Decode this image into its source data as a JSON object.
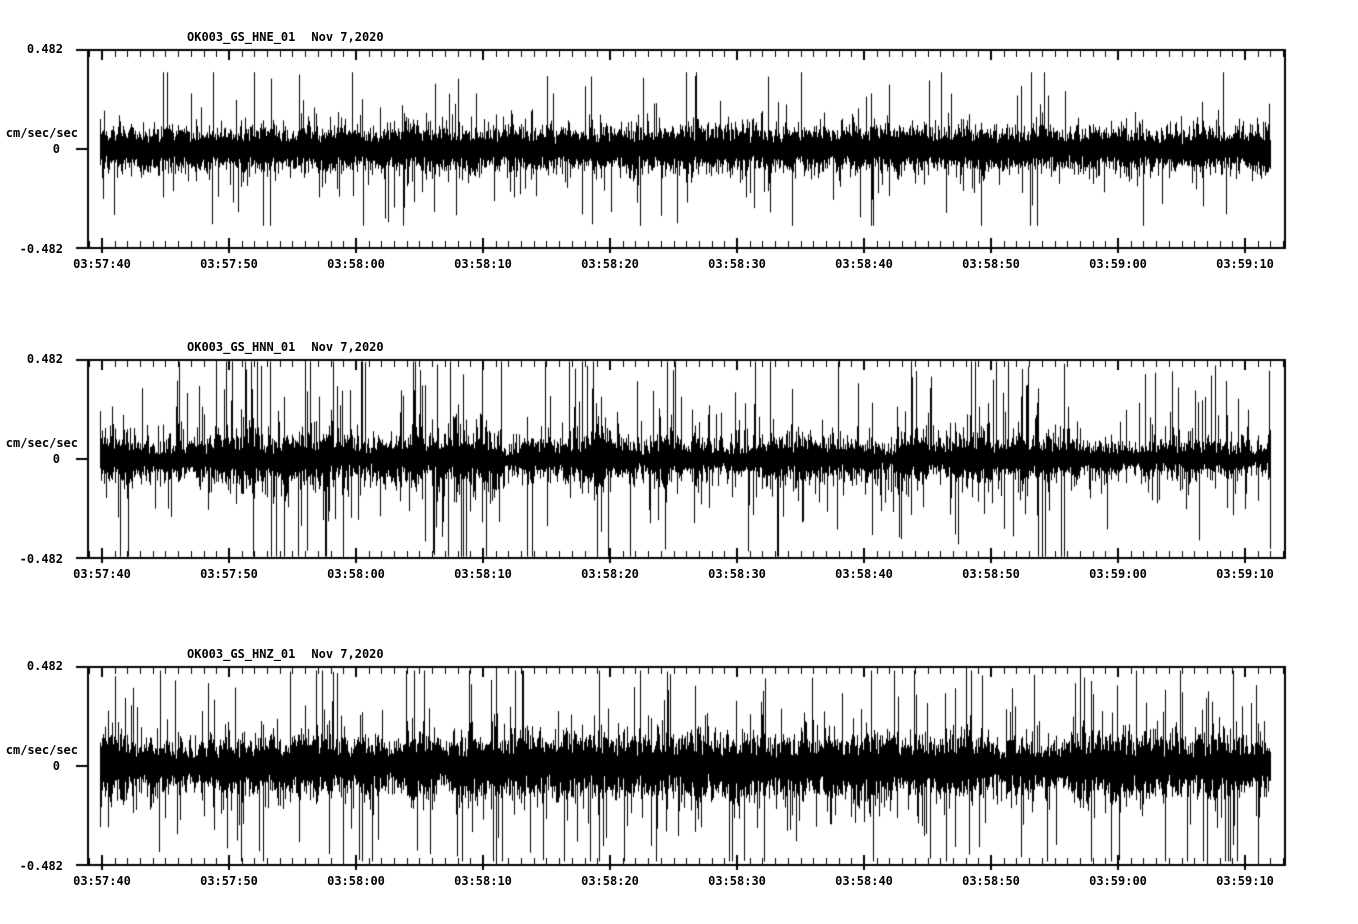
{
  "page": {
    "background": "#ffffff",
    "text_color": "#000000",
    "series_color": "#000000",
    "description": "Three stacked seismogram panels, black waveform traces on white"
  },
  "chart_data": [
    {
      "type": "line",
      "subtype": "seismogram",
      "title": "OK003_GS_HNE_01",
      "date_label": "Nov 7,2020",
      "ylabel": "cm/sec/sec",
      "ytick_labels": [
        "0.482",
        "0",
        "-0.482"
      ],
      "ylim": [
        -0.482,
        0.482
      ],
      "xtick_labels": [
        "03:57:40",
        "03:57:50",
        "03:58:00",
        "03:58:10",
        "03:58:20",
        "03:58:30",
        "03:58:40",
        "03:58:50",
        "03:59:00",
        "03:59:10"
      ],
      "x_major_tick_seconds": 10,
      "x_minor_tick_seconds": 1,
      "grid": false,
      "legend": null,
      "noise_model": {
        "seed": 20201107,
        "core_amplitude": 0.06,
        "tail_scale": 0.052,
        "spike_probability": 0.045,
        "burst_pow": 0.5,
        "trend_start": 1.0,
        "trend_end": 0.95,
        "peak": 0.37,
        "description": "dense broadband noise, fairly uniform amplitude, spikes to ~±0.36"
      }
    },
    {
      "type": "line",
      "subtype": "seismogram",
      "title": "OK003_GS_HNN_01",
      "date_label": "Nov 7,2020",
      "ylabel": "cm/sec/sec",
      "ytick_labels": [
        "0.482",
        "0",
        "-0.482"
      ],
      "ylim": [
        -0.482,
        0.482
      ],
      "xtick_labels": [
        "03:57:40",
        "03:57:50",
        "03:58:00",
        "03:58:10",
        "03:58:20",
        "03:58:30",
        "03:58:40",
        "03:58:50",
        "03:59:00",
        "03:59:10"
      ],
      "x_major_tick_seconds": 10,
      "x_minor_tick_seconds": 1,
      "grid": false,
      "legend": null,
      "noise_model": {
        "seed": 7112020,
        "core_amplitude": 0.05,
        "tail_scale": 0.07,
        "spike_probability": 0.085,
        "burst_pow": 1.5,
        "trend_start": 1.12,
        "trend_end": 0.82,
        "peak": 0.47,
        "description": "bursty spiky noise, larger early (spikes near ±0.46), slowly decaying"
      }
    },
    {
      "type": "line",
      "subtype": "seismogram",
      "title": "OK003_GS_HNZ_01",
      "date_label": "Nov 7,2020",
      "ylabel": "cm/sec/sec",
      "ytick_labels": [
        "0.482",
        "0",
        "-0.482"
      ],
      "ylim": [
        -0.482,
        0.482
      ],
      "xtick_labels": [
        "03:57:40",
        "03:57:50",
        "03:58:00",
        "03:58:10",
        "03:58:20",
        "03:58:30",
        "03:58:40",
        "03:58:50",
        "03:59:00",
        "03:59:10"
      ],
      "x_major_tick_seconds": 10,
      "x_minor_tick_seconds": 1,
      "grid": false,
      "legend": null,
      "noise_model": {
        "seed": 3115,
        "core_amplitude": 0.08,
        "tail_scale": 0.068,
        "spike_probability": 0.075,
        "burst_pow": 0.9,
        "trend_start": 1.02,
        "trend_end": 0.95,
        "peak": 0.46,
        "description": "dense wide noise band, frequent spikes to ~±0.45"
      }
    }
  ]
}
